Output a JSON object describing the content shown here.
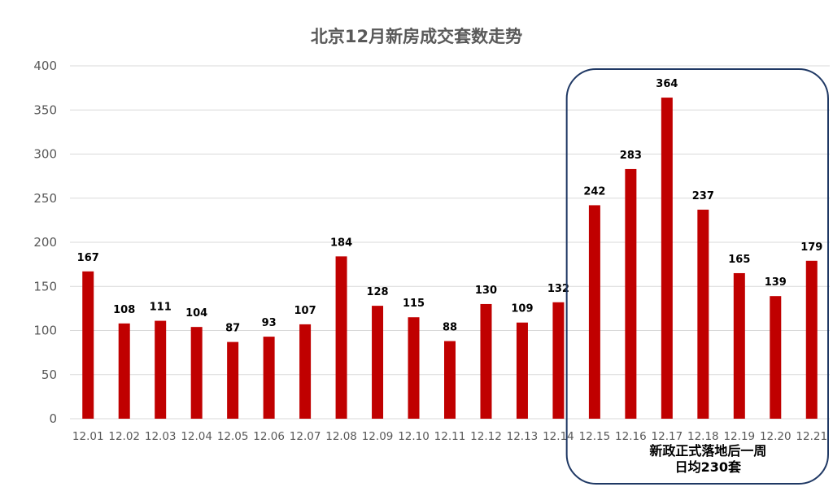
{
  "colors": {
    "bar": "#c00000",
    "grid": "#d9d9d9",
    "text": "#595959",
    "highlight_border": "#1f3864"
  },
  "chart_data": {
    "type": "bar",
    "title": "北京12月新房成交套数走势",
    "xlabel": "",
    "ylabel": "",
    "ylim": [
      0,
      400
    ],
    "yticks": [
      0,
      50,
      100,
      150,
      200,
      250,
      300,
      350,
      400
    ],
    "grid": true,
    "categories": [
      "12.01",
      "12.02",
      "12.03",
      "12.04",
      "12.05",
      "12.06",
      "12.07",
      "12.08",
      "12.09",
      "12.10",
      "12.11",
      "12.12",
      "12.13",
      "12.14",
      "12.15",
      "12.16",
      "12.17",
      "12.18",
      "12.19",
      "12.20",
      "12.21"
    ],
    "values": [
      167,
      108,
      111,
      104,
      87,
      93,
      107,
      184,
      128,
      115,
      88,
      130,
      109,
      132,
      242,
      283,
      364,
      237,
      165,
      139,
      179
    ],
    "annotation": {
      "categories_from": "12.15",
      "categories_to": "12.21",
      "lines": [
        "新政正式落地后一周",
        "日均230套"
      ]
    }
  }
}
